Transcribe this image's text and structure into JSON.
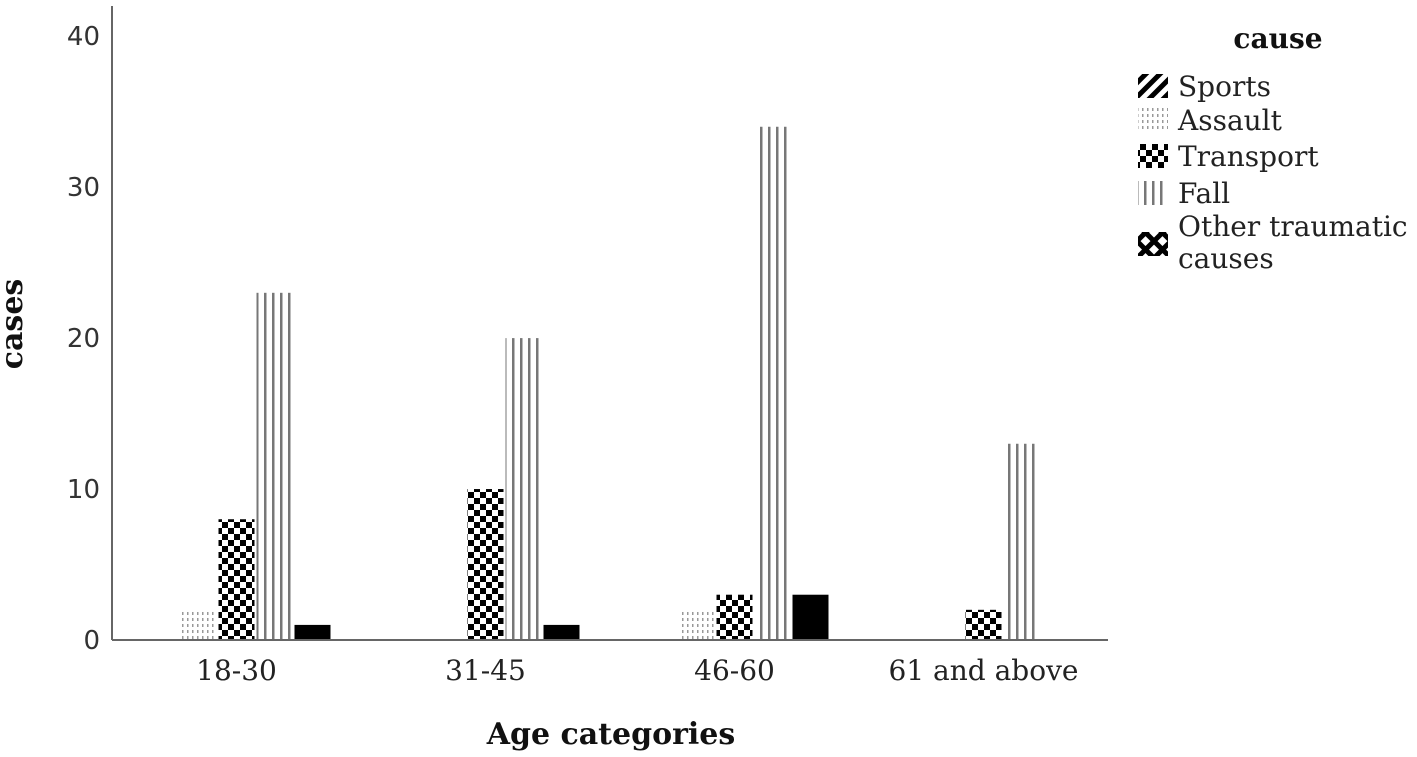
{
  "chart_data": {
    "type": "bar",
    "xlabel": "Age categories",
    "ylabel": "cases",
    "ylim": [
      0,
      42
    ],
    "yticks": [
      "0",
      "10",
      "20",
      "30",
      "40"
    ],
    "grid": false,
    "legend_title": "cause",
    "legend_position": "right",
    "categories": [
      "18-30",
      "31-45",
      "46-60",
      "61 and above"
    ],
    "series": [
      {
        "name": "Sports",
        "pattern": "diagonal",
        "values": [
          0,
          0,
          0,
          0
        ]
      },
      {
        "name": "Assault",
        "pattern": "dotted",
        "values": [
          2,
          0,
          2,
          0
        ]
      },
      {
        "name": "Transport",
        "pattern": "checker",
        "values": [
          8,
          10,
          3,
          2
        ]
      },
      {
        "name": "Fall",
        "pattern": "vertical",
        "values": [
          23,
          20,
          34,
          13
        ]
      },
      {
        "name": "Other traumatic causes",
        "legend_lines": [
          "Other traumatic",
          "causes"
        ],
        "pattern": "crosshatch",
        "values": [
          1,
          1,
          3,
          0
        ]
      }
    ],
    "colors": {
      "ink": "#000000",
      "line": "#888888",
      "axis": "#666666"
    }
  }
}
